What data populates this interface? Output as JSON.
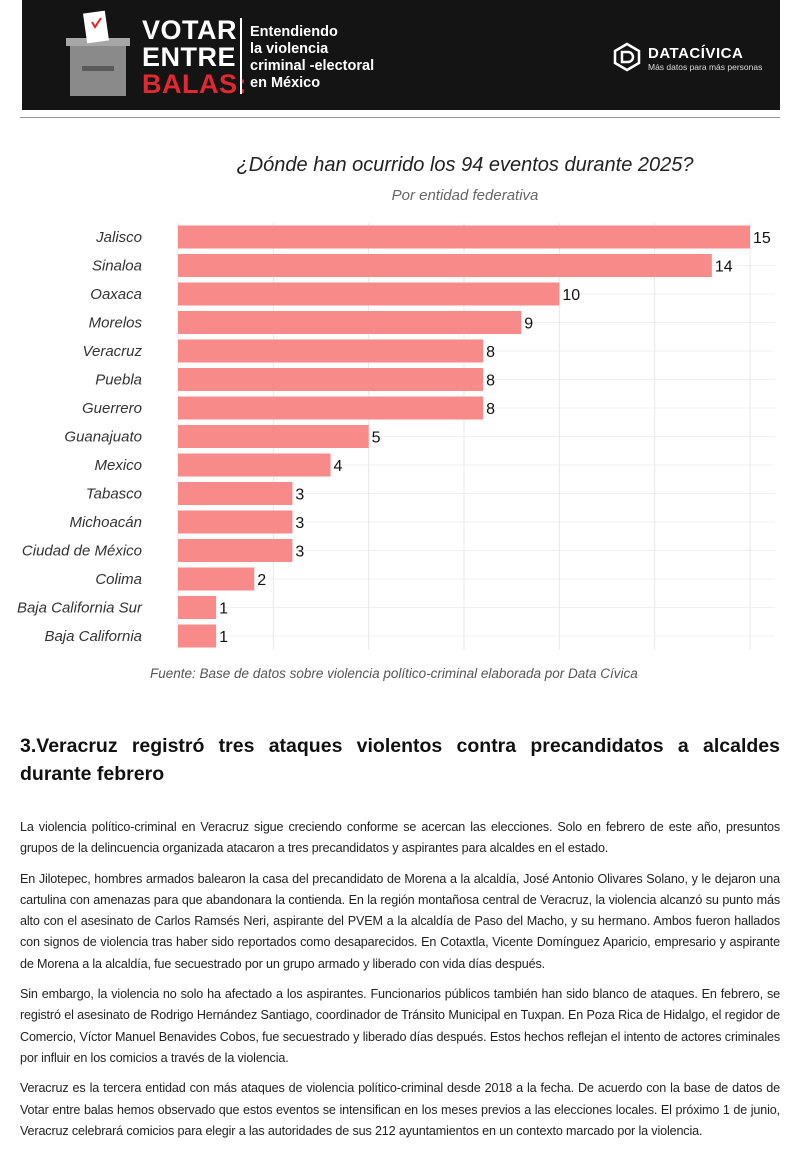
{
  "header": {
    "title_lines": [
      "VOTAR",
      "ENTRE",
      "BALAS:"
    ],
    "subtitle_lines": [
      "Entendiendo",
      "la violencia",
      "criminal -electoral",
      "en México"
    ],
    "brand": "DATACÍVICA",
    "tagline": "Más datos para más personas"
  },
  "chart_data": {
    "type": "bar",
    "orientation": "horizontal",
    "title": "¿Dónde han ocurrido los 94 eventos durante 2025?",
    "subtitle": "Por entidad federativa",
    "categories": [
      "Jalisco",
      "Sinaloa",
      "Oaxaca",
      "Morelos",
      "Veracruz",
      "Puebla",
      "Guerrero",
      "Guanajuato",
      "Mexico",
      "Tabasco",
      "Michoacán",
      "Ciudad de México",
      "Colima",
      "Baja California Sur",
      "Baja California"
    ],
    "values": [
      15,
      14,
      10,
      9,
      8,
      8,
      8,
      5,
      4,
      3,
      3,
      3,
      2,
      1,
      1
    ],
    "color": "#f88a8a",
    "xlim": [
      0,
      15
    ],
    "xticks": [
      0,
      2.5,
      5,
      7.5,
      10,
      12.5,
      15
    ],
    "grid": true,
    "source": "Fuente: Base de datos sobre violencia político-criminal elaborada por Data Cívica"
  },
  "article": {
    "heading": "3.Veracruz registró tres ataques violentos contra precandidatos a alcaldes durante febrero",
    "paragraphs": [
      "La violencia político-criminal en Veracruz sigue creciendo conforme se acercan las elecciones. Solo en febrero de este año, presuntos grupos de la delincuencia organizada atacaron a tres precandidatos y aspirantes para alcaldes en el estado.",
      "En Jilotepec, hombres armados balearon la casa del precandidato de Morena a la alcaldía, José Antonio Olivares Solano, y le dejaron una cartulina con amenazas para que abandonara la contienda.  En la región montañosa central de Veracruz, la violencia alcanzó su punto más alto con el asesinato de Carlos Ramsés Neri, aspirante del PVEM a la alcaldía de Paso del Macho, y su hermano. Ambos fueron hallados con signos de violencia tras haber sido reportados como desaparecidos.  En Cotaxtla, Vicente Domínguez Aparicio, empresario y aspirante de Morena a la alcaldía, fue secuestrado por un grupo armado y liberado con vida días después.",
      "Sin embargo, la violencia no solo ha afectado a los aspirantes. Funcionarios públicos también han sido blanco de ataques. En febrero, se registró el asesinato de Rodrigo Hernández Santiago, coordinador de Tránsito Municipal en Tuxpan.  En Poza Rica de Hidalgo, el regidor de Comercio, Víctor Manuel Benavides Cobos, fue secuestrado y liberado días después.  Estos hechos reflejan el intento de actores criminales por influir en los comicios a través de la violencia.",
      "Veracruz es la tercera entidad con más ataques de violencia político-criminal desde 2018 a la fecha.  De acuerdo con la base de datos de Votar entre balas hemos observado que estos eventos se intensifican en los meses previos a las elecciones locales.  El próximo 1 de junio, Veracruz celebrará comicios para elegir a las autoridades de sus 212 ayuntamientos en un contexto marcado por la violencia."
    ]
  }
}
